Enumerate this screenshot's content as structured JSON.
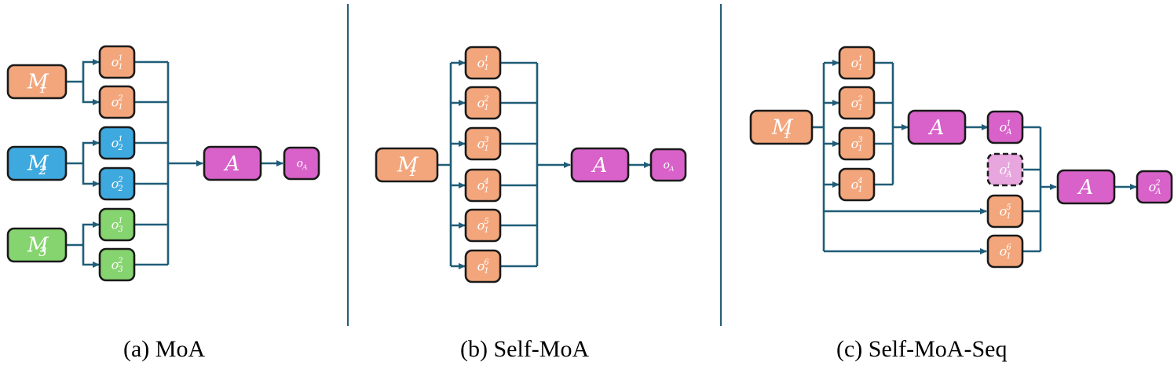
{
  "colors": {
    "line": "#1f5d78",
    "divider": "#2a5d78",
    "stroke": "#1a1a1a",
    "orange": "#f3a67c",
    "blue": "#3ea9df",
    "green": "#86d46f",
    "magenta": "#d862c9",
    "light_magenta": "#e7a6de",
    "white": "#ffffff"
  },
  "panels": [
    {
      "caption": "(a) MoA",
      "proposers": [
        {
          "id": "M1",
          "base": "M",
          "sub": "1",
          "color": "orange"
        },
        {
          "id": "M2",
          "base": "M",
          "sub": "2",
          "color": "blue"
        },
        {
          "id": "M3",
          "base": "M",
          "sub": "3",
          "color": "green"
        }
      ],
      "outputs": [
        {
          "base": "o",
          "sub": "1",
          "sup": "1",
          "color": "orange"
        },
        {
          "base": "o",
          "sub": "1",
          "sup": "2",
          "color": "orange"
        },
        {
          "base": "o",
          "sub": "2",
          "sup": "1",
          "color": "blue"
        },
        {
          "base": "o",
          "sub": "2",
          "sup": "2",
          "color": "blue"
        },
        {
          "base": "o",
          "sub": "3",
          "sup": "1",
          "color": "green"
        },
        {
          "base": "o",
          "sub": "3",
          "sup": "2",
          "color": "green"
        }
      ],
      "aggregator": {
        "label": "A",
        "color": "magenta"
      },
      "final": {
        "base": "o",
        "sub": "A",
        "sup": ""
      }
    },
    {
      "caption": "(b) Self-MoA",
      "proposers": [
        {
          "id": "M1",
          "base": "M",
          "sub": "1",
          "color": "orange"
        }
      ],
      "outputs": [
        {
          "base": "o",
          "sub": "1",
          "sup": "1",
          "color": "orange"
        },
        {
          "base": "o",
          "sub": "1",
          "sup": "2",
          "color": "orange"
        },
        {
          "base": "o",
          "sub": "1",
          "sup": "3",
          "color": "orange"
        },
        {
          "base": "o",
          "sub": "1",
          "sup": "4",
          "color": "orange"
        },
        {
          "base": "o",
          "sub": "1",
          "sup": "5",
          "color": "orange"
        },
        {
          "base": "o",
          "sub": "1",
          "sup": "6",
          "color": "orange"
        }
      ],
      "aggregator": {
        "label": "A",
        "color": "magenta"
      },
      "final": {
        "base": "o",
        "sub": "A",
        "sup": ""
      }
    },
    {
      "caption": "(c) Self-MoA-Seq",
      "proposers": [
        {
          "id": "M1",
          "base": "M",
          "sub": "1",
          "color": "orange"
        }
      ],
      "outputs": [
        {
          "base": "o",
          "sub": "1",
          "sup": "1",
          "color": "orange"
        },
        {
          "base": "o",
          "sub": "1",
          "sup": "2",
          "color": "orange"
        },
        {
          "base": "o",
          "sub": "1",
          "sup": "3",
          "color": "orange"
        },
        {
          "base": "o",
          "sub": "1",
          "sup": "4",
          "color": "orange"
        },
        {
          "base": "o",
          "sub": "1",
          "sup": "5",
          "color": "orange"
        },
        {
          "base": "o",
          "sub": "1",
          "sup": "6",
          "color": "orange"
        }
      ],
      "aggregator_1": {
        "label": "A",
        "color": "magenta"
      },
      "intermediate": {
        "base": "o",
        "sub": "A",
        "sup": "1",
        "color": "magenta"
      },
      "intermediate_copy": {
        "base": "o",
        "sub": "A",
        "sup": "1",
        "color": "light_magenta",
        "dashed": true
      },
      "aggregator_2": {
        "label": "A",
        "color": "magenta"
      },
      "final": {
        "base": "o",
        "sub": "A",
        "sup": "2"
      }
    }
  ]
}
